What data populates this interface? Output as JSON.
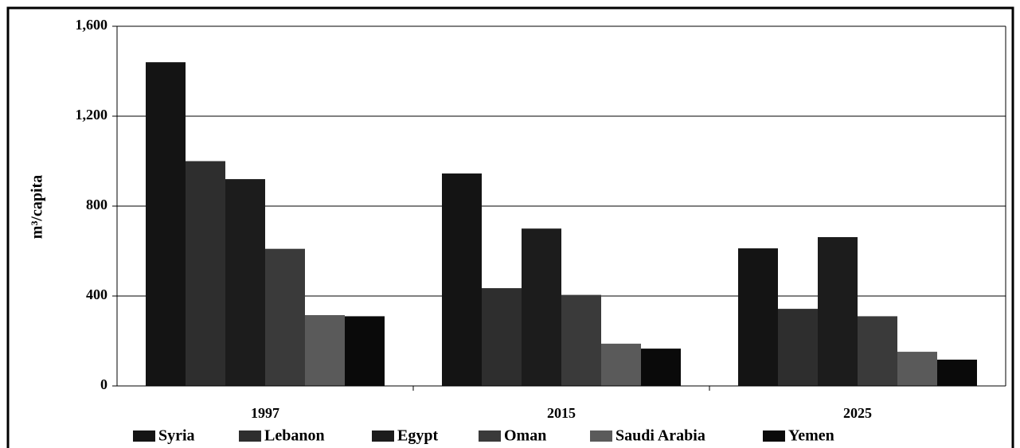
{
  "chart_data": {
    "type": "bar",
    "y_label": "m³/capita",
    "categories": [
      "1997",
      "2015",
      "2025"
    ],
    "series": [
      {
        "name": "Syria",
        "color": "#141414",
        "values": [
          1440,
          945,
          612
        ]
      },
      {
        "name": "Lebanon",
        "color": "#2e2e2e",
        "values": [
          1000,
          435,
          343
        ]
      },
      {
        "name": "Egypt",
        "color": "#1c1c1c",
        "values": [
          920,
          700,
          662
        ]
      },
      {
        "name": "Oman",
        "color": "#3a3a3a",
        "values": [
          610,
          405,
          310
        ]
      },
      {
        "name": "Saudi Arabia",
        "color": "#5a5a5a",
        "values": [
          315,
          188,
          152
        ]
      },
      {
        "name": "Yemen",
        "color": "#0a0a0a",
        "values": [
          310,
          166,
          117
        ]
      }
    ],
    "ylim": [
      0,
      1600
    ],
    "yticks": [
      0,
      400,
      800,
      {
        "value": 1200,
        "label": "1,200"
      },
      {
        "value": 1600,
        "label": "1,600"
      }
    ],
    "grid": true
  }
}
